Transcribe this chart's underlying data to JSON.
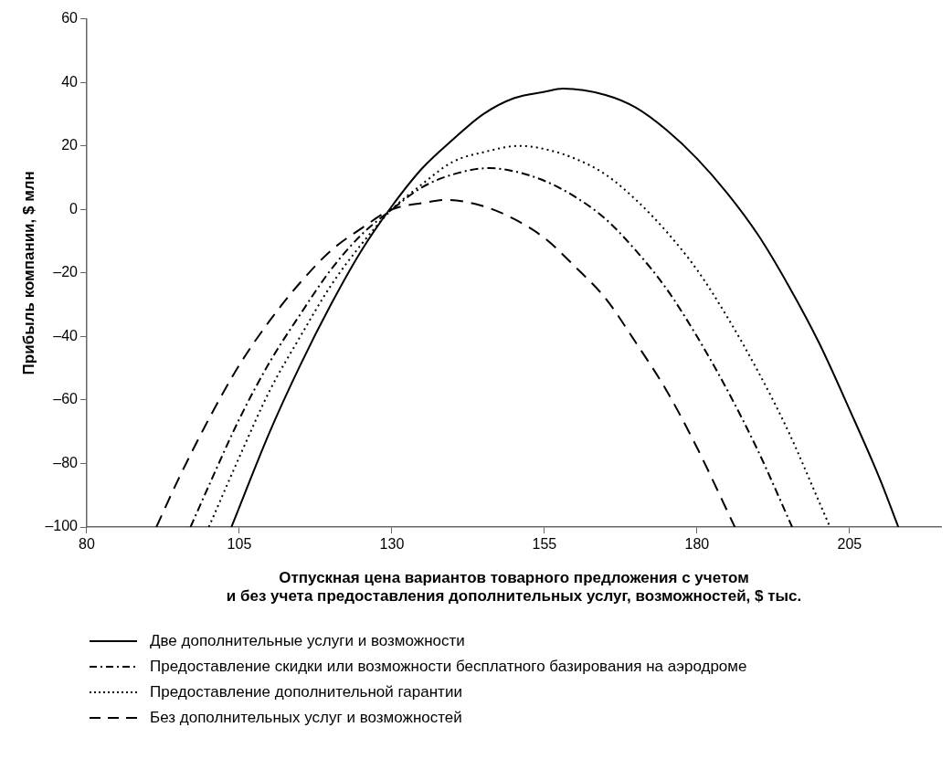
{
  "chart_data": {
    "type": "line",
    "xlabel": "Отпускная цена вариантов товарного предложения с учетом\nи без учета предоставления дополнительных услуг, возможностей, $ тыс.",
    "ylabel": "Прибыль компании, $ млн",
    "xlim": [
      80,
      220
    ],
    "xticks": [
      80,
      105,
      130,
      155,
      180,
      205
    ],
    "ylim": [
      -100,
      60
    ],
    "yticks": [
      60,
      40,
      20,
      0,
      {
        "value": -20,
        "label": "–20"
      },
      {
        "value": -40,
        "label": "–40"
      },
      {
        "value": -60,
        "label": "–60"
      },
      {
        "value": -80,
        "label": "–80"
      },
      {
        "value": -100,
        "label": "–100"
      }
    ],
    "grid": false,
    "legend": "bottom",
    "marker": "none",
    "series": [
      {
        "name": "Две дополнительные услуги и возможности",
        "color": "#000000",
        "line_style": "solid",
        "x": [
          103.7,
          110,
          115,
          120,
          125,
          130,
          135,
          140,
          145,
          150,
          155,
          158,
          165,
          170,
          175,
          180,
          185,
          190,
          195,
          200,
          205,
          210,
          213
        ],
        "values": [
          -100,
          -70,
          -49,
          -30,
          -13,
          1,
          13,
          22,
          30,
          35,
          37,
          38,
          36,
          32,
          25,
          16,
          5,
          -8,
          -24,
          -42,
          -63,
          -85,
          -100
        ]
      },
      {
        "name": "Предоставление скидки или возможности бесплатного базирования на аэродроме",
        "color": "#000000",
        "line_style": "dashdot",
        "x": [
          97,
          100,
          105,
          110,
          115,
          120,
          125,
          130,
          135,
          140,
          146,
          150,
          155,
          160,
          165,
          170,
          175,
          180,
          185,
          190,
          195.6
        ],
        "values": [
          -100,
          -87,
          -66,
          -48,
          -33,
          -19,
          -8,
          0,
          7,
          11,
          13,
          12,
          9,
          4,
          -3,
          -13,
          -25,
          -40,
          -57,
          -76,
          -100
        ]
      },
      {
        "name": "Предоставление дополнительной гарантии",
        "color": "#000000",
        "line_style": "dotted",
        "x": [
          100,
          105,
          110,
          115,
          120,
          125,
          130,
          135,
          140,
          145,
          151,
          155,
          160,
          165,
          170,
          175,
          180,
          185,
          190,
          195,
          200,
          201.8
        ],
        "values": [
          -100,
          -78,
          -57,
          -40,
          -24,
          -11,
          0,
          8,
          15,
          18,
          20,
          19,
          16,
          11,
          3,
          -7,
          -19,
          -34,
          -51,
          -70,
          -92,
          -100
        ]
      },
      {
        "name": "Без дополнительных услуг и возможностей",
        "color": "#000000",
        "line_style": "dashed",
        "x": [
          91.4,
          95,
          100,
          105,
          110,
          115,
          120,
          125,
          130,
          135,
          139,
          145,
          150,
          155,
          160,
          165,
          170,
          175,
          180,
          186.2
        ],
        "values": [
          -100,
          -85,
          -66,
          -49,
          -35,
          -23,
          -13,
          -6,
          0,
          2,
          3,
          1,
          -3,
          -9,
          -18,
          -28,
          -42,
          -57,
          -75,
          -100
        ]
      }
    ]
  }
}
